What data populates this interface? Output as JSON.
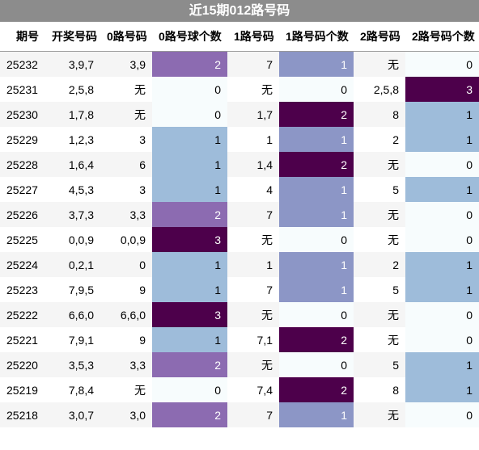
{
  "title": "近15期012路号码",
  "columns": [
    "期号",
    "开奖号码",
    "0路号码",
    "0路号球个数",
    "1路号码",
    "1路号码个数",
    "2路号码",
    "2路号码个数"
  ],
  "rows": [
    {
      "issue": "25232",
      "draw": "3,9,7",
      "r0": "3,9",
      "c0": "2",
      "r1": "7",
      "c1": "1",
      "r2": "无",
      "c2": "0"
    },
    {
      "issue": "25231",
      "draw": "2,5,8",
      "r0": "无",
      "c0": "0",
      "r1": "无",
      "c1": "0",
      "r2": "2,5,8",
      "c2": "3"
    },
    {
      "issue": "25230",
      "draw": "1,7,8",
      "r0": "无",
      "c0": "0",
      "r1": "1,7",
      "c1": "2",
      "r2": "8",
      "c2": "1"
    },
    {
      "issue": "25229",
      "draw": "1,2,3",
      "r0": "3",
      "c0": "1",
      "r1": "1",
      "c1": "1",
      "r2": "2",
      "c2": "1"
    },
    {
      "issue": "25228",
      "draw": "1,6,4",
      "r0": "6",
      "c0": "1",
      "r1": "1,4",
      "c1": "2",
      "r2": "无",
      "c2": "0"
    },
    {
      "issue": "25227",
      "draw": "4,5,3",
      "r0": "3",
      "c0": "1",
      "r1": "4",
      "c1": "1",
      "r2": "5",
      "c2": "1"
    },
    {
      "issue": "25226",
      "draw": "3,7,3",
      "r0": "3,3",
      "c0": "2",
      "r1": "7",
      "c1": "1",
      "r2": "无",
      "c2": "0"
    },
    {
      "issue": "25225",
      "draw": "0,0,9",
      "r0": "0,0,9",
      "c0": "3",
      "r1": "无",
      "c1": "0",
      "r2": "无",
      "c2": "0"
    },
    {
      "issue": "25224",
      "draw": "0,2,1",
      "r0": "0",
      "c0": "1",
      "r1": "1",
      "c1": "1",
      "r2": "2",
      "c2": "1"
    },
    {
      "issue": "25223",
      "draw": "7,9,5",
      "r0": "9",
      "c0": "1",
      "r1": "7",
      "c1": "1",
      "r2": "5",
      "c2": "1"
    },
    {
      "issue": "25222",
      "draw": "6,6,0",
      "r0": "6,6,0",
      "c0": "3",
      "r1": "无",
      "c1": "0",
      "r2": "无",
      "c2": "0"
    },
    {
      "issue": "25221",
      "draw": "7,9,1",
      "r0": "9",
      "c0": "1",
      "r1": "7,1",
      "c1": "2",
      "r2": "无",
      "c2": "0"
    },
    {
      "issue": "25220",
      "draw": "3,5,3",
      "r0": "3,3",
      "c0": "2",
      "r1": "无",
      "c1": "0",
      "r2": "5",
      "c2": "1"
    },
    {
      "issue": "25219",
      "draw": "7,8,4",
      "r0": "无",
      "c0": "0",
      "r1": "7,4",
      "c1": "2",
      "r2": "8",
      "c2": "1"
    },
    {
      "issue": "25218",
      "draw": "3,0,7",
      "r0": "3,0",
      "c0": "2",
      "r1": "7",
      "c1": "1",
      "r2": "无",
      "c2": "0"
    }
  ]
}
